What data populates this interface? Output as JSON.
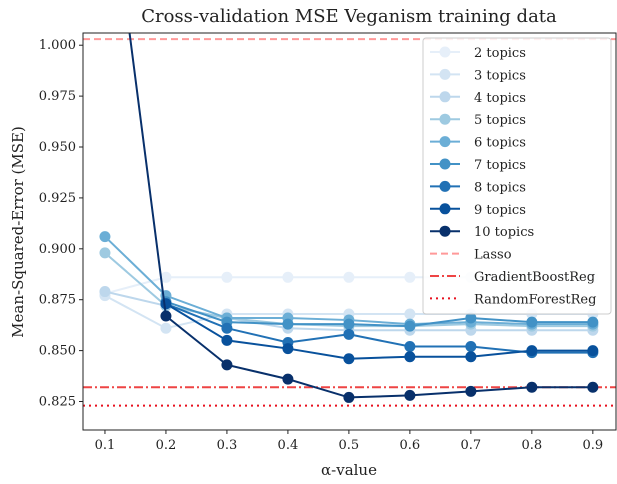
{
  "chart_data": {
    "type": "line",
    "title": "Cross-validation MSE Veganism training data",
    "xlabel": "α-value",
    "ylabel": "Mean-Squared-Error (MSE)",
    "xlim": [
      0.064,
      0.938
    ],
    "ylim": [
      0.811,
      1.006
    ],
    "xticks": [
      0.1,
      0.2,
      0.3,
      0.4,
      0.5,
      0.6,
      0.7,
      0.8,
      0.9
    ],
    "xtick_labels": [
      "0.1",
      "0.2",
      "0.3",
      "0.4",
      "0.5",
      "0.6",
      "0.7",
      "0.8",
      "0.9"
    ],
    "yticks": [
      0.825,
      0.85,
      0.875,
      0.9,
      0.925,
      0.95,
      0.975,
      1.0
    ],
    "ytick_labels": [
      "0.825",
      "0.850",
      "0.875",
      "0.900",
      "0.925",
      "0.950",
      "0.975",
      "1.000"
    ],
    "grid": false,
    "legend_position": "top-right",
    "x": [
      0.1,
      0.2,
      0.3,
      0.4,
      0.5,
      0.6,
      0.7,
      0.8,
      0.9
    ],
    "series": [
      {
        "name": "2 topics",
        "color": "#e6eff9",
        "values": [
          0.878,
          0.886,
          0.886,
          0.886,
          0.886,
          0.886,
          0.886,
          0.886,
          0.886
        ]
      },
      {
        "name": "3 topics",
        "color": "#d3e4f3",
        "values": [
          0.877,
          0.861,
          0.868,
          0.868,
          0.868,
          0.868,
          0.868,
          0.868,
          0.868
        ]
      },
      {
        "name": "4 topics",
        "color": "#bdd7ec",
        "values": [
          0.879,
          0.872,
          0.866,
          0.861,
          0.86,
          0.86,
          0.86,
          0.86,
          0.86
        ]
      },
      {
        "name": "5 topics",
        "color": "#9ecae1",
        "values": [
          0.898,
          0.872,
          0.866,
          0.863,
          0.862,
          0.862,
          0.863,
          0.862,
          0.862
        ]
      },
      {
        "name": "6 topics",
        "color": "#6baed6",
        "values": [
          0.906,
          0.877,
          0.866,
          0.866,
          0.865,
          0.863,
          0.864,
          0.863,
          0.863
        ]
      },
      {
        "name": "7 topics",
        "color": "#4292c6",
        "values": [
          null,
          0.874,
          0.864,
          0.863,
          0.863,
          0.862,
          0.866,
          0.864,
          0.864
        ]
      },
      {
        "name": "8 topics",
        "color": "#2171b5",
        "values": [
          null,
          0.873,
          0.861,
          0.854,
          0.858,
          0.852,
          0.852,
          0.849,
          0.849
        ]
      },
      {
        "name": "9 topics",
        "color": "#08519c",
        "values": [
          null,
          0.873,
          0.855,
          0.851,
          0.846,
          0.847,
          0.847,
          0.85,
          0.85
        ]
      },
      {
        "name": "10 topics",
        "color": "#08306b",
        "values": [
          1.1,
          0.867,
          0.843,
          0.836,
          0.827,
          0.828,
          0.83,
          0.832,
          0.832
        ]
      }
    ],
    "reference_lines": [
      {
        "name": "Lasso",
        "value": 1.003,
        "color": "#ff9999",
        "style": "dashed"
      },
      {
        "name": "GradientBoostReg",
        "value": 0.832,
        "color": "#ee4444",
        "style": "dashdot"
      },
      {
        "name": "RandomForestReg",
        "value": 0.823,
        "color": "#e8101e",
        "style": "dotted"
      }
    ]
  }
}
